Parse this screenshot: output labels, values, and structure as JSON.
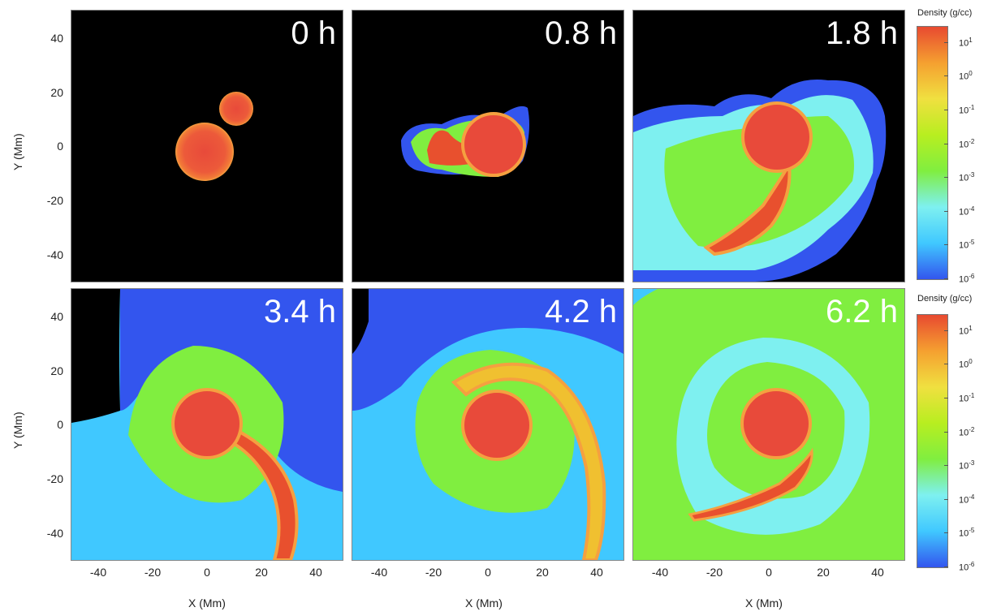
{
  "chart_data": {
    "type": "heatmap",
    "panels": [
      {
        "time": "0 h"
      },
      {
        "time": "0.8 h"
      },
      {
        "time": "1.8 h"
      },
      {
        "time": "3.4 h"
      },
      {
        "time": "4.2 h"
      },
      {
        "time": "6.2 h"
      }
    ],
    "xlabel": "X (Mm)",
    "ylabel": "Y (Mm)",
    "xlim": [
      -50,
      50
    ],
    "ylim": [
      -50,
      50
    ],
    "xticks": [
      "-40",
      "-20",
      "0",
      "20",
      "40"
    ],
    "yticks": [
      "40",
      "20",
      "0",
      "-20",
      "-40"
    ],
    "colorbar": {
      "title": "Density (g/cc)",
      "scale": "log",
      "range": [
        1e-06,
        30
      ],
      "tick_exponents": [
        "1",
        "0",
        "-1",
        "-2",
        "-3",
        "-4",
        "-5",
        "-6"
      ],
      "tick_base": "10",
      "colors": [
        "#3355ee",
        "#40c8ff",
        "#7ef0f0",
        "#80ee40",
        "#b8ee20",
        "#f0e040",
        "#f5a030",
        "#e84a30"
      ]
    }
  }
}
